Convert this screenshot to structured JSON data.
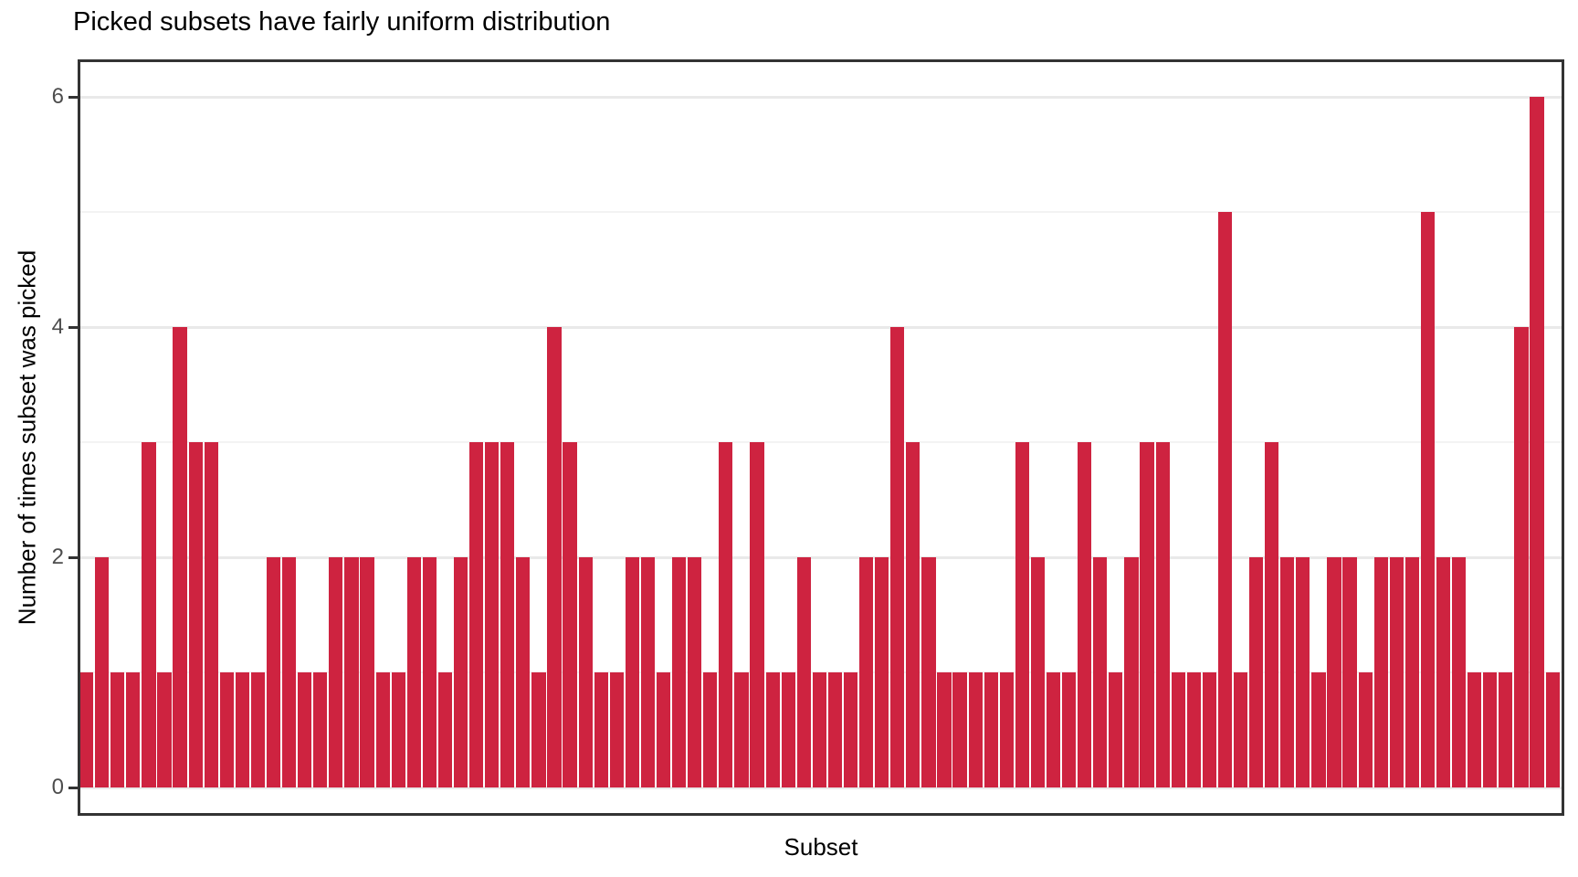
{
  "title": "Picked subsets have fairly uniform distribution",
  "colors": {
    "bar": "#CE2340",
    "panel_border": "#333333",
    "tick_label": "#4D4D4D",
    "gridline_major": "#E9E9E9",
    "gridline_minor": "#F3F3F3",
    "background": "#FFFFFF",
    "text": "#000000"
  },
  "chart_data": {
    "type": "bar",
    "title": "Picked subsets have fairly uniform distribution",
    "xlabel": "Subset",
    "ylabel": "Number of times subset was picked",
    "ylim": [
      0,
      6.55
    ],
    "yticks": [
      0,
      2,
      4,
      6
    ],
    "yticks_minor": [
      1,
      3,
      5
    ],
    "grid": "horizontal, major and minor, light gray on white",
    "legend": "none",
    "x_tick_labels": "none (individual subsets unlabeled)",
    "n_bars": 95,
    "bar_color": "#CE2340",
    "values": [
      1,
      2,
      1,
      1,
      3,
      1,
      4,
      3,
      3,
      1,
      1,
      1,
      2,
      2,
      1,
      1,
      2,
      2,
      2,
      1,
      1,
      2,
      2,
      1,
      2,
      3,
      3,
      3,
      2,
      1,
      4,
      3,
      2,
      1,
      1,
      2,
      2,
      1,
      2,
      2,
      1,
      3,
      1,
      3,
      1,
      1,
      2,
      1,
      1,
      1,
      2,
      2,
      4,
      3,
      2,
      1,
      1,
      1,
      1,
      1,
      3,
      2,
      1,
      1,
      3,
      2,
      1,
      2,
      3,
      3,
      1,
      1,
      1,
      5,
      1,
      2,
      3,
      2,
      2,
      1,
      2,
      2,
      1,
      2,
      2,
      2,
      5,
      2,
      2,
      1,
      1,
      1,
      4,
      6,
      1
    ]
  }
}
